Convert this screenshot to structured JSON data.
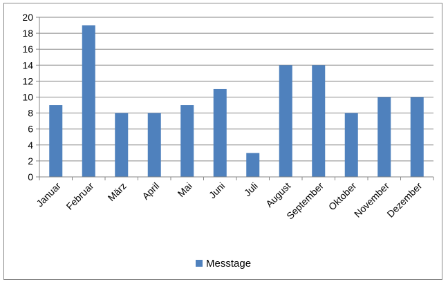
{
  "chart_data": {
    "type": "bar",
    "title": "",
    "xlabel": "",
    "ylabel": "",
    "categories": [
      "Januar",
      "Februar",
      "März",
      "April",
      "Mai",
      "Juni",
      "Juli",
      "August",
      "September",
      "Oktober",
      "November",
      "Dezember"
    ],
    "series": [
      {
        "name": "Messtage",
        "values": [
          9,
          19,
          8,
          8,
          9,
          11,
          3,
          14,
          14,
          8,
          10,
          10
        ]
      }
    ],
    "ylim": [
      0,
      20
    ],
    "yticks": [
      0,
      2,
      4,
      6,
      8,
      10,
      12,
      14,
      16,
      18,
      20
    ],
    "grid": true,
    "legend_position": "bottom",
    "colors": {
      "bar": "#4F81BD",
      "grid": "#868686",
      "axis": "#868686"
    }
  }
}
